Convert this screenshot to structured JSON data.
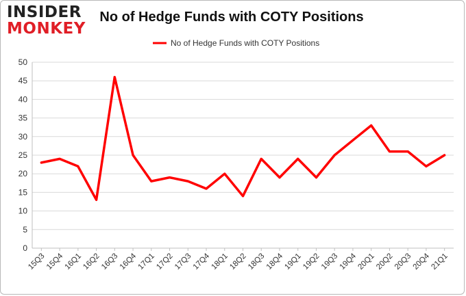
{
  "brand": {
    "line1": "INSIDER",
    "line2": "MONKEY"
  },
  "chart_data": {
    "type": "line",
    "title": "No of Hedge Funds with COTY Positions",
    "categories": [
      "15Q3",
      "15Q4",
      "16Q1",
      "16Q2",
      "16Q3",
      "16Q4",
      "17Q1",
      "17Q2",
      "17Q3",
      "17Q4",
      "18Q1",
      "18Q2",
      "18Q3",
      "18Q4",
      "19Q1",
      "19Q2",
      "19Q3",
      "19Q4",
      "20Q1",
      "20Q2",
      "20Q3",
      "20Q4",
      "21Q1"
    ],
    "series": [
      {
        "name": "No of Hedge Funds with COTY Positions",
        "color": "#ff0000",
        "values": [
          23,
          24,
          22,
          13,
          46,
          25,
          18,
          19,
          18,
          16,
          20,
          14,
          24,
          19,
          24,
          19,
          25,
          29,
          33,
          26,
          26,
          22,
          25
        ]
      }
    ],
    "ylim": [
      0,
      50
    ],
    "yticks": [
      0,
      5,
      10,
      15,
      20,
      25,
      30,
      35,
      40,
      45,
      50
    ],
    "grid": true,
    "legend": "top-center",
    "xlabel": "",
    "ylabel": ""
  }
}
